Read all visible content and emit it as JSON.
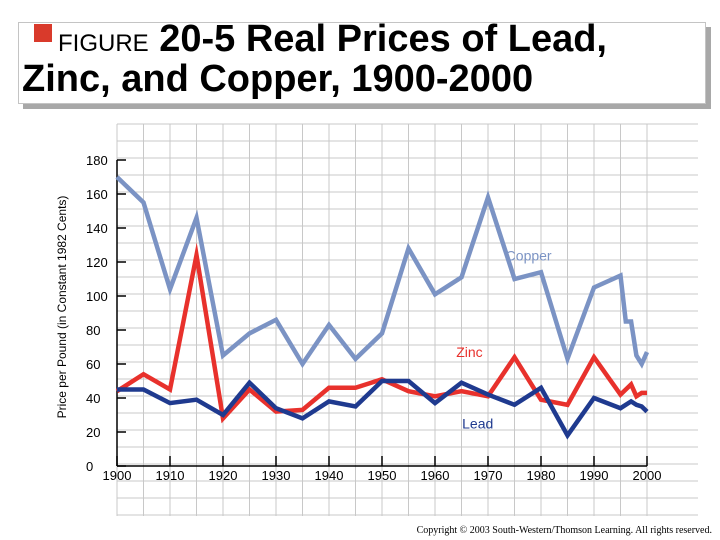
{
  "title": {
    "figure_word": "FIGURE",
    "line1": " 20-5 Real Prices of Lead,",
    "line2": "Zinc, and Copper, 1900-2000"
  },
  "copyright": "Copyright © 2003 South-Western/Thomson Learning. All rights reserved.",
  "colors": {
    "copper": "#7b93c4",
    "zinc": "#e8312c",
    "lead": "#1f3a8f",
    "grid": "#c8c8c8",
    "title_bullet": "#d93a2b"
  },
  "chart_data": {
    "type": "line",
    "title": "",
    "xlabel": "",
    "ylabel": "Price per Pound (in Constant 1982 Cents)",
    "xlim": [
      1900,
      2000
    ],
    "ylim": [
      0,
      180
    ],
    "x_ticks": [
      1900,
      1910,
      1920,
      1930,
      1940,
      1950,
      1960,
      1970,
      1980,
      1990,
      2000
    ],
    "x_tick_labels": [
      "1900",
      "1910",
      "1920",
      "1930",
      "1940",
      "1950",
      "1960",
      "1970",
      "1980",
      "1990",
      "2000"
    ],
    "y_ticks": [
      0,
      20,
      40,
      60,
      80,
      100,
      120,
      140,
      160,
      180
    ],
    "y_tick_labels": [
      "0",
      "20",
      "40",
      "60",
      "80",
      "100",
      "120",
      "140",
      "160",
      "180"
    ],
    "grid": true,
    "series": [
      {
        "name": "Copper",
        "key": "copper",
        "x": [
          1900,
          1905,
          1910,
          1915,
          1920,
          1925,
          1930,
          1935,
          1940,
          1945,
          1950,
          1955,
          1960,
          1965,
          1970,
          1975,
          1980,
          1985,
          1990,
          1995,
          1996,
          1997,
          1998,
          1999,
          2000
        ],
        "y": [
          170,
          155,
          104,
          146,
          65,
          78,
          86,
          60,
          83,
          63,
          78,
          128,
          101,
          111,
          158,
          110,
          114,
          63,
          105,
          112,
          85,
          85,
          65,
          60,
          67
        ]
      },
      {
        "name": "Zinc",
        "key": "zinc",
        "x": [
          1900,
          1905,
          1910,
          1915,
          1920,
          1925,
          1930,
          1935,
          1940,
          1945,
          1950,
          1955,
          1960,
          1965,
          1970,
          1975,
          1980,
          1985,
          1990,
          1995,
          1997,
          1998,
          1999,
          2000
        ],
        "y": [
          44,
          54,
          45,
          124,
          28,
          45,
          32,
          33,
          46,
          46,
          51,
          44,
          41,
          44,
          41,
          64,
          39,
          36,
          64,
          42,
          48,
          41,
          43,
          43
        ]
      },
      {
        "name": "Lead",
        "key": "lead",
        "x": [
          1900,
          1905,
          1910,
          1915,
          1920,
          1925,
          1930,
          1935,
          1940,
          1945,
          1950,
          1955,
          1960,
          1965,
          1970,
          1975,
          1980,
          1985,
          1990,
          1995,
          1997,
          1998,
          1999,
          2000
        ],
        "y": [
          45,
          45,
          37,
          39,
          30,
          49,
          34,
          28,
          38,
          35,
          50,
          50,
          37,
          49,
          42,
          36,
          46,
          18,
          40,
          34,
          38,
          36,
          35,
          32
        ]
      }
    ],
    "annotations": [
      {
        "text": "Copper",
        "key": "copper"
      },
      {
        "text": "Zinc",
        "key": "zinc"
      },
      {
        "text": "Lead",
        "key": "lead"
      }
    ]
  }
}
